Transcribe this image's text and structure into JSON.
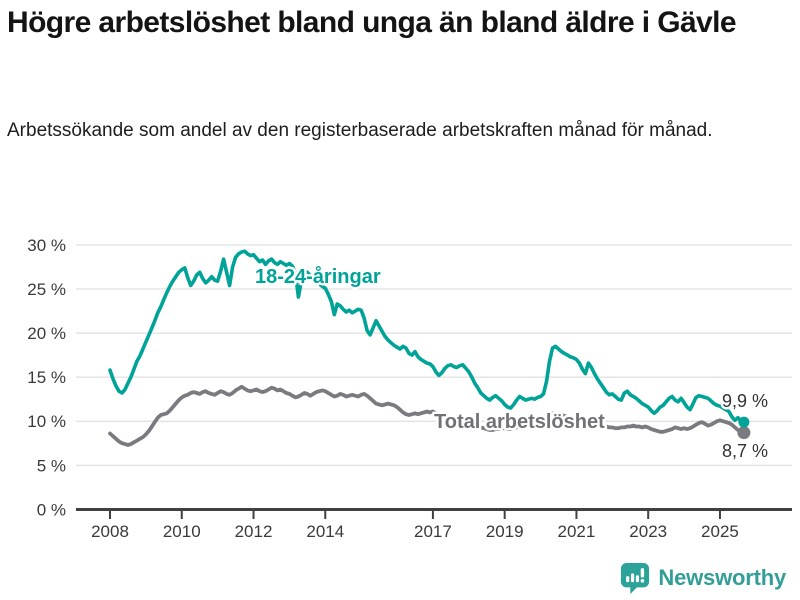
{
  "title": "Högre arbetslöshet bland unga än bland äldre i Gävle",
  "subtitle": "Arbetssökande som andel av den registerbaserade arbetskraften månad för månad.",
  "footer": {
    "brand": "Newsworthy",
    "logo_icon": "bar-chart-speech-bubble-icon"
  },
  "colors": {
    "young_line": "#00a398",
    "total_line": "#7a7a80",
    "total_label": "#717178",
    "axis": "#404040",
    "tick_text": "#3a3a3a",
    "grid": "#d8d8d8",
    "value_text": "#333333",
    "brand_teal": "#339e97",
    "halo": "#ffffff"
  },
  "chart_data": {
    "type": "line",
    "x_unit": "month",
    "x_start": "2008-01",
    "x_end": "2025-09",
    "ylim": [
      0,
      30
    ],
    "grid": true,
    "legend": "inline-labels",
    "y_tick_labels": [
      "0 %",
      "5 %",
      "10 %",
      "15 %",
      "20 %",
      "25 %",
      "30 %"
    ],
    "x_tick_labels": [
      "2008",
      "2010",
      "2012",
      "2014",
      "2017",
      "2019",
      "2021",
      "2023",
      "2025"
    ],
    "series": [
      {
        "name": "total",
        "label": "Total arbetslöshet",
        "end_label": "8,7 %",
        "end_value": 8.7,
        "values": [
          8.6,
          8.3,
          8.0,
          7.7,
          7.5,
          7.4,
          7.3,
          7.4,
          7.6,
          7.8,
          8.0,
          8.2,
          8.5,
          8.9,
          9.4,
          9.9,
          10.4,
          10.7,
          10.8,
          10.9,
          11.2,
          11.6,
          12.0,
          12.4,
          12.7,
          12.9,
          13.0,
          13.2,
          13.3,
          13.2,
          13.1,
          13.3,
          13.4,
          13.2,
          13.1,
          13.0,
          13.2,
          13.4,
          13.3,
          13.1,
          13.0,
          13.2,
          13.5,
          13.7,
          13.9,
          13.7,
          13.5,
          13.4,
          13.5,
          13.6,
          13.4,
          13.3,
          13.4,
          13.6,
          13.8,
          13.7,
          13.5,
          13.6,
          13.4,
          13.2,
          13.1,
          12.9,
          12.7,
          12.8,
          13.0,
          13.2,
          13.1,
          12.9,
          13.1,
          13.3,
          13.4,
          13.5,
          13.4,
          13.2,
          13.0,
          12.8,
          12.9,
          13.1,
          13.0,
          12.8,
          12.9,
          13.0,
          12.9,
          12.8,
          13.0,
          13.1,
          12.9,
          12.6,
          12.3,
          12.0,
          11.9,
          11.8,
          11.9,
          12.0,
          11.9,
          11.8,
          11.6,
          11.3,
          11.0,
          10.8,
          10.7,
          10.8,
          10.9,
          10.8,
          10.9,
          11.0,
          11.1,
          11.0,
          11.1,
          10.9,
          10.7,
          10.6,
          10.5,
          10.4,
          10.3,
          10.2,
          10.1,
          10.0,
          9.9,
          9.8,
          9.7,
          9.6,
          9.5,
          9.4,
          9.3,
          9.2,
          9.1,
          9.0,
          9.0,
          9.1,
          9.1,
          9.2,
          9.2,
          9.1,
          9.1,
          9.2,
          9.3,
          9.4,
          9.4,
          9.5,
          9.5,
          9.6,
          9.6,
          9.7,
          9.8,
          9.9,
          10.3,
          10.7,
          10.9,
          10.8,
          10.8,
          10.7,
          10.6,
          10.5,
          10.4,
          10.3,
          10.3,
          10.2,
          10.1,
          10.0,
          9.9,
          9.8,
          9.7,
          9.6,
          9.5,
          9.4,
          9.4,
          9.3,
          9.3,
          9.2,
          9.2,
          9.3,
          9.3,
          9.4,
          9.4,
          9.5,
          9.4,
          9.4,
          9.3,
          9.4,
          9.3,
          9.1,
          9.0,
          8.9,
          8.8,
          8.8,
          8.9,
          9.0,
          9.1,
          9.3,
          9.2,
          9.1,
          9.2,
          9.1,
          9.2,
          9.4,
          9.6,
          9.8,
          9.9,
          9.7,
          9.5,
          9.6,
          9.8,
          10.0,
          10.1,
          10.0,
          9.9,
          9.8,
          9.6,
          9.3,
          9.0,
          8.8,
          8.7
        ]
      },
      {
        "name": "young",
        "label": "18-24-åringar",
        "end_label": "9,9 %",
        "end_value": 9.9,
        "values": [
          15.8,
          14.8,
          14.0,
          13.4,
          13.2,
          13.6,
          14.3,
          15.0,
          15.9,
          16.8,
          17.4,
          18.2,
          19.0,
          19.8,
          20.6,
          21.4,
          22.3,
          23.0,
          23.8,
          24.6,
          25.3,
          25.9,
          26.4,
          26.9,
          27.2,
          27.4,
          26.3,
          25.4,
          25.9,
          26.6,
          26.9,
          26.2,
          25.7,
          26.0,
          26.4,
          26.0,
          25.9,
          27.0,
          28.4,
          26.9,
          25.4,
          27.5,
          28.6,
          29.0,
          29.2,
          29.3,
          29.0,
          28.8,
          28.9,
          28.5,
          28.1,
          28.3,
          27.8,
          28.2,
          28.4,
          28.0,
          27.8,
          28.1,
          27.9,
          27.7,
          27.9,
          27.6,
          26.8,
          24.1,
          25.9,
          26.6,
          26.9,
          26.5,
          26.1,
          25.8,
          25.6,
          25.3,
          25.1,
          24.4,
          23.6,
          22.1,
          23.3,
          23.1,
          22.7,
          22.4,
          22.6,
          22.3,
          22.5,
          22.7,
          22.6,
          21.7,
          20.3,
          19.8,
          20.6,
          21.4,
          20.8,
          20.2,
          19.6,
          19.2,
          18.9,
          18.6,
          18.4,
          18.2,
          18.5,
          18.3,
          17.7,
          17.5,
          17.9,
          17.3,
          17.0,
          16.8,
          16.6,
          16.5,
          16.2,
          15.6,
          15.2,
          15.5,
          16.0,
          16.3,
          16.4,
          16.2,
          16.1,
          16.3,
          16.4,
          16.0,
          15.6,
          15.0,
          14.3,
          13.8,
          13.2,
          12.9,
          12.6,
          12.4,
          12.7,
          12.9,
          12.6,
          12.3,
          11.9,
          11.6,
          11.5,
          11.9,
          12.4,
          12.8,
          12.6,
          12.4,
          12.5,
          12.6,
          12.5,
          12.7,
          12.8,
          13.1,
          14.5,
          16.8,
          18.3,
          18.5,
          18.2,
          17.9,
          17.7,
          17.5,
          17.3,
          17.2,
          17.0,
          16.6,
          15.9,
          15.4,
          16.6,
          16.1,
          15.4,
          14.8,
          14.3,
          13.8,
          13.3,
          13.0,
          13.1,
          12.8,
          12.5,
          12.4,
          13.2,
          13.4,
          13.0,
          12.8,
          12.6,
          12.3,
          12.0,
          11.8,
          11.6,
          11.2,
          10.9,
          11.2,
          11.6,
          11.8,
          12.2,
          12.6,
          12.8,
          12.4,
          12.2,
          12.6,
          12.1,
          11.6,
          11.3,
          12.0,
          12.7,
          12.9,
          12.8,
          12.7,
          12.6,
          12.3,
          12.0,
          11.8,
          11.7,
          11.5,
          11.3,
          11.1,
          10.5,
          10.1,
          10.4,
          10.0,
          9.9
        ]
      }
    ]
  }
}
